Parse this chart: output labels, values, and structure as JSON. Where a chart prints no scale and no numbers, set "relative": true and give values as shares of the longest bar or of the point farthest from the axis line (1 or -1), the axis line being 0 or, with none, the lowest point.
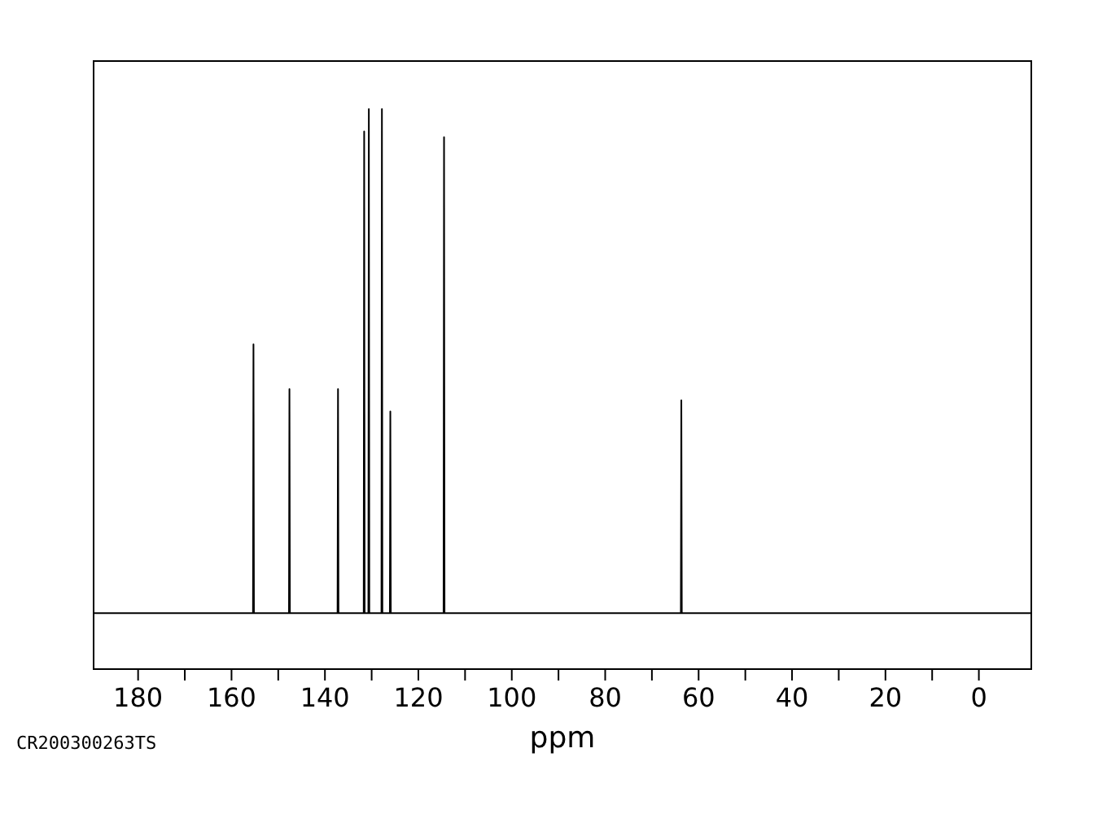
{
  "chart_data": {
    "type": "line",
    "relative": true,
    "marker": "none",
    "line_style": "solid",
    "xlabel": "ppm",
    "annotations": [
      "CR200300263TS"
    ],
    "xlim": [
      189.7,
      -11.4
    ],
    "xticks": [
      180,
      {
        "value": 170,
        "label": null
      },
      160,
      {
        "value": 150,
        "label": null
      },
      140,
      {
        "value": 130,
        "label": null
      },
      120,
      {
        "value": 110,
        "label": null
      },
      100,
      {
        "value": 90,
        "label": null
      },
      80,
      {
        "value": 70,
        "label": null
      },
      60,
      {
        "value": 50,
        "label": null
      },
      40,
      {
        "value": 30,
        "label": null
      },
      20,
      {
        "value": 10,
        "label": null
      },
      0
    ],
    "series": [
      {
        "color": "#000000",
        "x": [
          189.5,
          155.4,
          155.3,
          155.2,
          147.7,
          147.6,
          147.5,
          137.3,
          137.2,
          137.1,
          131.7,
          131.6,
          131.5,
          130.7,
          130.6,
          130.5,
          127.9,
          127.8,
          127.7,
          126.1,
          126.0,
          125.9,
          114.6,
          114.5,
          114.4,
          63.8,
          63.7,
          63.6,
          -11.3
        ],
        "values": [
          0.1,
          0.1,
          0.58,
          0.1,
          0.1,
          0.5,
          0.1,
          0.1,
          0.5,
          0.1,
          0.1,
          0.96,
          0.1,
          0.1,
          1,
          0.1,
          0.1,
          1,
          0.1,
          0.1,
          0.46,
          0.1,
          0.1,
          0.95,
          0.1,
          0.1,
          0.48,
          0.1,
          0.1
        ]
      }
    ]
  }
}
